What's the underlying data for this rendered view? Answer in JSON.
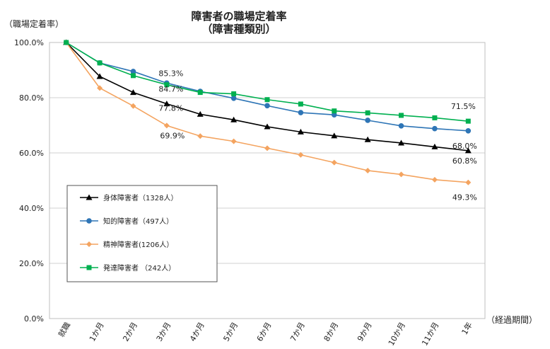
{
  "chart_data": {
    "type": "line",
    "title": "障害者の職場定着率",
    "subtitle": "（障害種類別）",
    "ylabel": "（職場定着率）",
    "xlabel": "（経過期間）",
    "ylim": [
      0,
      100
    ],
    "yticks": [
      "0.0%",
      "20.0%",
      "40.0%",
      "60.0%",
      "80.0%",
      "100.0%"
    ],
    "categories": [
      "就職",
      "1か月",
      "2か月",
      "3か月",
      "4か月",
      "5か月",
      "6か月",
      "7か月",
      "8か月",
      "9か月",
      "10か月",
      "11か月",
      "1年"
    ],
    "grid": true,
    "legend_position": "left-middle",
    "series": [
      {
        "name": "身体障害者（1328人）",
        "color": "#000000",
        "marker": "triangle",
        "values": [
          100,
          87.7,
          81.9,
          77.8,
          74.0,
          72.0,
          69.5,
          67.6,
          66.2,
          64.8,
          63.6,
          62.2,
          60.8
        ]
      },
      {
        "name": "知的障害者（497人）",
        "color": "#2e75b6",
        "marker": "circle",
        "values": [
          100,
          92.6,
          89.5,
          85.3,
          82.3,
          79.8,
          77.1,
          74.6,
          73.8,
          71.8,
          69.8,
          68.8,
          68.0
        ]
      },
      {
        "name": "精神障害者(1206人）",
        "color": "#f4a460",
        "marker": "diamond",
        "values": [
          100,
          83.5,
          77.0,
          69.9,
          66.1,
          64.2,
          61.7,
          59.3,
          56.5,
          53.6,
          52.2,
          50.3,
          49.3
        ]
      },
      {
        "name": "発達障害者 （242人）",
        "color": "#00b050",
        "marker": "square",
        "values": [
          100,
          92.6,
          88.0,
          84.7,
          81.9,
          81.4,
          79.3,
          77.7,
          75.2,
          74.5,
          73.6,
          72.7,
          71.5
        ]
      }
    ],
    "annotations": [
      {
        "text": "85.3%",
        "series": 1,
        "index": 3
      },
      {
        "text": "84.7%",
        "series": 3,
        "index": 3
      },
      {
        "text": "77.8%",
        "series": 0,
        "index": 3
      },
      {
        "text": "69.9%",
        "series": 2,
        "index": 3
      },
      {
        "text": "71.5%",
        "series": 3,
        "index": 12
      },
      {
        "text": "68.0%",
        "series": 1,
        "index": 12
      },
      {
        "text": "60.8%",
        "series": 0,
        "index": 12
      },
      {
        "text": "49.3%",
        "series": 2,
        "index": 12
      }
    ]
  }
}
